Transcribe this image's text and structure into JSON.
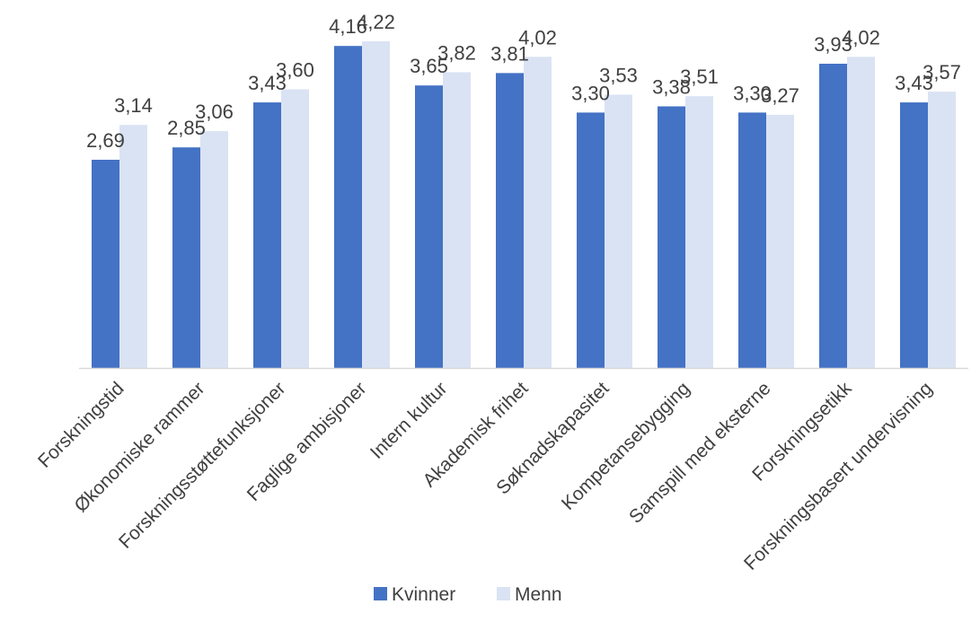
{
  "chart_data": {
    "type": "bar",
    "title": "",
    "xlabel": "",
    "ylabel": "",
    "ylim": [
      0,
      4.22
    ],
    "grid": false,
    "legend_position": "bottom",
    "categories": [
      "Forskningstid",
      "Økonomiske rammer",
      "Forskningsstøttefunksjoner",
      "Faglige ambisjoner",
      "Intern kultur",
      "Akademisk frihet",
      "Søknadskapasitet",
      "Kompetansebygging",
      "Samspill med eksterne",
      "Forskningsetikk",
      "Forskningsbasert undervisning"
    ],
    "series": [
      {
        "name": "Kvinner",
        "color": "#4472c4",
        "values": [
          2.69,
          2.85,
          3.43,
          4.16,
          3.65,
          3.81,
          3.3,
          3.38,
          3.3,
          3.93,
          3.43
        ],
        "labels": [
          "2,69",
          "2,85",
          "3,43",
          "4,16",
          "3,65",
          "3,81",
          "3,30",
          "3,38",
          "3,30",
          "3,93",
          "3,43"
        ]
      },
      {
        "name": "Menn",
        "color": "#dae3f3",
        "values": [
          3.14,
          3.06,
          3.6,
          4.22,
          3.82,
          4.02,
          3.53,
          3.51,
          3.27,
          4.02,
          3.57
        ],
        "labels": [
          "3,14",
          "3,06",
          "3,60",
          "4,22",
          "3,82",
          "4,02",
          "3,53",
          "3,51",
          "3,27",
          "4,02",
          "3,57"
        ]
      }
    ]
  }
}
